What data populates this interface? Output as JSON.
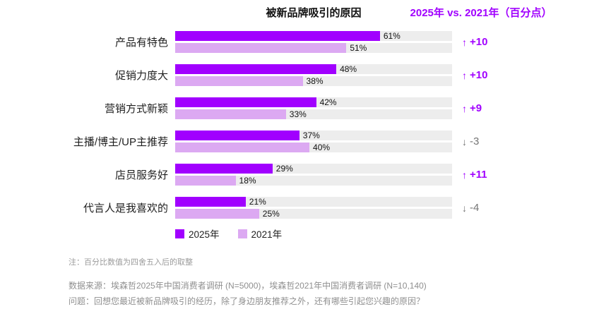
{
  "header": {
    "chart_title": "被新品牌吸引的原因",
    "comparison_title": "2025年 vs. 2021年（百分点）"
  },
  "legend": {
    "items": [
      {
        "label": "2025年",
        "color": "#A100FF"
      },
      {
        "label": "2021年",
        "color": "#DCA9F2"
      }
    ]
  },
  "chart_data": {
    "type": "bar",
    "orientation": "horizontal",
    "title": "被新品牌吸引的原因",
    "categories": [
      "产品有特色",
      "促销力度大",
      "营销方式新颖",
      "主播/博主/UP主推荐",
      "店员服务好",
      "代言人是我喜欢的"
    ],
    "series": [
      {
        "name": "2025年",
        "values": [
          61,
          48,
          42,
          37,
          29,
          21
        ]
      },
      {
        "name": "2021年",
        "values": [
          51,
          38,
          33,
          40,
          18,
          25
        ]
      }
    ],
    "changes_pp": [
      10,
      10,
      9,
      -3,
      11,
      -4
    ],
    "value_unit": "%",
    "xmax": 82.5,
    "grid": false,
    "legend_position": "bottom-left"
  },
  "rows": [
    {
      "label": "产品有特色",
      "pct2025": "61%",
      "pct2021": "51%",
      "arrow": "↑",
      "change": "+10",
      "direction": "up"
    },
    {
      "label": "促销力度大",
      "pct2025": "48%",
      "pct2021": "38%",
      "arrow": "↑",
      "change": "+10",
      "direction": "up"
    },
    {
      "label": "营销方式新颖",
      "pct2025": "42%",
      "pct2021": "33%",
      "arrow": "↑",
      "change": "+9",
      "direction": "up"
    },
    {
      "label": "主播/博主/UP主推荐",
      "pct2025": "37%",
      "pct2021": "40%",
      "arrow": "↓",
      "change": "-3",
      "direction": "down"
    },
    {
      "label": "店员服务好",
      "pct2025": "29%",
      "pct2021": "18%",
      "arrow": "↑",
      "change": "+11",
      "direction": "up"
    },
    {
      "label": "代言人是我喜欢的",
      "pct2025": "21%",
      "pct2021": "25%",
      "arrow": "↓",
      "change": "-4",
      "direction": "down"
    }
  ],
  "footnotes": {
    "note": "注：百分比数值为四舍五入后的取整",
    "source": "数据来源：埃森哲2025年中国消费者调研 (N=5000)，埃森哲2021年中国消费者调研 (N=10,140)",
    "question": "问题：回想您最近被新品牌吸引的经历，除了身边朋友推荐之外，还有哪些引起您兴趣的原因？"
  },
  "colors": {
    "bar_2025": "#A100FF",
    "bar_2021": "#DCA9F2",
    "track": "#EDEDED",
    "positive_change": "#A100FF",
    "negative_change": "#757575",
    "comparison_title": "#A100FF"
  }
}
